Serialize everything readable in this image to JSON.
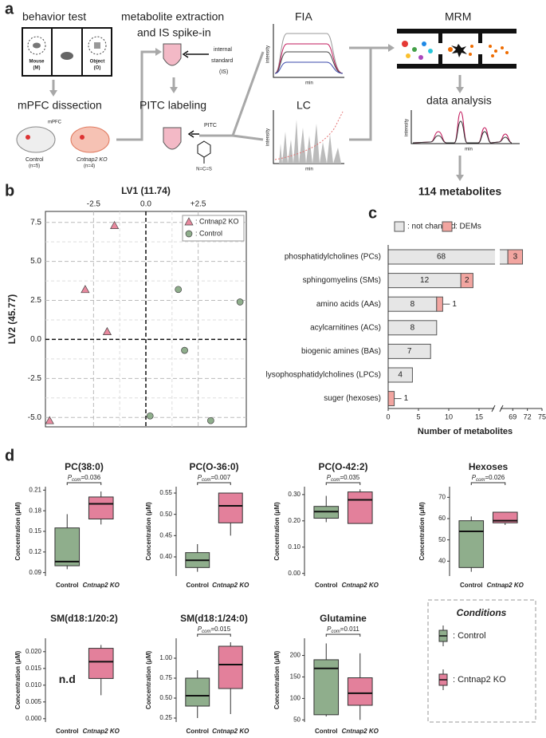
{
  "panel_labels": [
    "a",
    "b",
    "c",
    "d"
  ],
  "panel_a": {
    "behavior_test": "behavior test",
    "mouse": "Mouse",
    "mouse_code": "(M)",
    "object": "Object",
    "object_code": "(O)",
    "dissection": "mPFC dissection",
    "mpfc": "mPFC",
    "control": "Control",
    "control_n": "(n=5)",
    "ko": "Cntnap2 KO",
    "ko_n": "(n=4)",
    "extraction": [
      "metabolite extraction",
      "and IS spike-in"
    ],
    "is_label": [
      "internal",
      "standard",
      "(IS)"
    ],
    "labeling": "PITC labeling",
    "pitc": "PITC",
    "ncs": "N=C=S",
    "fia": "FIA",
    "lc": "LC",
    "mrm": "MRM",
    "analysis": "data analysis",
    "axis_y": "intensity",
    "axis_x": "min",
    "result": "114 metabolites"
  },
  "chart_data": [
    {
      "type": "scatter",
      "xlabel": "LV1 (11.74)",
      "ylabel": "LV2 (45.77)",
      "xlim": [
        -4.8,
        4.8
      ],
      "ylim": [
        -5.6,
        8.2
      ],
      "xticks": [
        -2.5,
        {
          "value": 0,
          "label": "0.0"
        },
        {
          "value": 2.5,
          "label": "+2.5"
        }
      ],
      "yticks": [
        {
          "value": -5,
          "label": "-5.0"
        },
        -2.5,
        {
          "value": 0,
          "label": "0.0"
        },
        2.5,
        {
          "value": 5,
          "label": "5.0"
        },
        7.5
      ],
      "grid": true,
      "legend": "upper right",
      "series": [
        {
          "name": ": Cntnap2 KO",
          "marker": "triangle",
          "color": "#e8899e",
          "x": [
            -1.5,
            -2.9,
            -1.85,
            -4.6
          ],
          "y": [
            7.3,
            3.2,
            0.5,
            -5.2
          ]
        },
        {
          "name": ": Control",
          "marker": "circle",
          "color": "#8fae8c",
          "x": [
            1.55,
            4.5,
            1.85,
            0.2,
            3.1
          ],
          "y": [
            3.2,
            2.4,
            -0.7,
            -4.9,
            -5.2
          ]
        }
      ]
    },
    {
      "type": "bar",
      "orientation": "horizontal",
      "stacked": true,
      "xlabel": "Number of metabolites",
      "categories": [
        "phosphatidylcholines (PCs)",
        "sphingomyelins (SMs)",
        "amino acids (AAs)",
        "acylcarnitines (ACs)",
        "biogenic amines (BAs)",
        "lysophosphatidylcholines (LPCs)",
        "suger (hexoses)"
      ],
      "series": [
        {
          "name": ": not changed",
          "color": "#e6e6e6",
          "values": [
            68,
            12,
            8,
            8,
            7,
            4,
            0
          ]
        },
        {
          "name": ": DEMs",
          "color": "#f2a5a0",
          "values": [
            3,
            2,
            1,
            0,
            0,
            0,
            1
          ]
        }
      ],
      "xlim": [
        0,
        75
      ],
      "xbreak": [
        17.5,
        66.5
      ],
      "xticks": [
        0,
        5,
        10,
        15,
        69,
        72,
        75
      ]
    },
    {
      "type": "box",
      "title": "PC(38:0)",
      "ylabel": "Concentration (μM)",
      "categories": [
        "Control",
        "Cntnap2 KO"
      ],
      "colors": [
        "#8fae8c",
        "#e3809b"
      ],
      "boxes": [
        {
          "min": 0.095,
          "q1": 0.1,
          "median": 0.106,
          "q3": 0.155,
          "max": 0.175
        },
        {
          "min": 0.16,
          "q1": 0.168,
          "median": 0.19,
          "q3": 0.2,
          "max": 0.208
        }
      ],
      "ylim": [
        0.085,
        0.215
      ],
      "yticks": [
        0.09,
        0.12,
        0.15,
        0.18,
        0.21
      ],
      "p_label": "P",
      "p_sub": "com",
      "p_text": "=0.036"
    },
    {
      "type": "box",
      "title": "PC(O-36:0)",
      "ylabel": "Concentration (μM)",
      "categories": [
        "Control",
        "Cntnap2 KO"
      ],
      "colors": [
        "#8fae8c",
        "#e3809b"
      ],
      "boxes": [
        {
          "min": 0.365,
          "q1": 0.375,
          "median": 0.392,
          "q3": 0.41,
          "max": 0.43
        },
        {
          "min": 0.45,
          "q1": 0.48,
          "median": 0.52,
          "q3": 0.55,
          "max": 0.55
        }
      ],
      "ylim": [
        0.355,
        0.565
      ],
      "yticks": [
        {
          "value": 0.4,
          "label": "0.40"
        },
        0.45,
        {
          "value": 0.5,
          "label": "0.50"
        },
        0.55
      ],
      "p_label": "P",
      "p_sub": "com",
      "p_text": "=0.007"
    },
    {
      "type": "box",
      "title": "PC(O-42:2)",
      "ylabel": "Concentration (μM)",
      "categories": [
        "Control",
        "Cntnap2 KO"
      ],
      "colors": [
        "#8fae8c",
        "#e3809b"
      ],
      "boxes": [
        {
          "min": 0.195,
          "q1": 0.21,
          "median": 0.235,
          "q3": 0.255,
          "max": 0.295
        },
        {
          "min": 0.19,
          "q1": 0.19,
          "median": 0.28,
          "q3": 0.31,
          "max": 0.32
        }
      ],
      "ylim": [
        -0.01,
        0.33
      ],
      "yticks": [
        {
          "value": 0,
          "label": "0.00"
        },
        {
          "value": 0.1,
          "label": "0.10"
        },
        {
          "value": 0.2,
          "label": "0.20"
        },
        {
          "value": 0.3,
          "label": "0.30"
        }
      ],
      "p_label": "P",
      "p_sub": "com",
      "p_text": "=0.035"
    },
    {
      "type": "box",
      "title": "Hexoses",
      "ylabel": "Concentration (μM)",
      "categories": [
        "Control",
        "Cntnap2 KO"
      ],
      "colors": [
        "#8fae8c",
        "#e3809b"
      ],
      "boxes": [
        {
          "min": 35,
          "q1": 37,
          "median": 54,
          "q3": 59,
          "max": 61
        },
        {
          "min": 57,
          "q1": 58,
          "median": 59,
          "q3": 63,
          "max": 63
        }
      ],
      "ylim": [
        33,
        75
      ],
      "yticks": [
        40,
        50,
        60,
        70
      ],
      "p_label": "P",
      "p_sub": "com",
      "p_text": "=0.026"
    },
    {
      "type": "box",
      "title": "SM(d18:1/20:2)",
      "ylabel": "Concentration (μM)",
      "categories": [
        "Control",
        "Cntnap2 KO"
      ],
      "colors": [
        "#8fae8c",
        "#e3809b"
      ],
      "boxes": [
        null,
        {
          "min": 0.007,
          "q1": 0.012,
          "median": 0.017,
          "q3": 0.021,
          "max": 0.022
        }
      ],
      "nd_label": "n.d",
      "ylim": [
        -0.001,
        0.024
      ],
      "yticks": [
        {
          "value": 0,
          "label": "0.000"
        },
        0.005,
        {
          "value": 0.01,
          "label": "0.010"
        },
        0.015,
        {
          "value": 0.02,
          "label": "0.020"
        }
      ]
    },
    {
      "type": "box",
      "title": "SM(d18:1/24:0)",
      "ylabel": "Concentration (μM)",
      "categories": [
        "Control",
        "Cntnap2 KO"
      ],
      "colors": [
        "#8fae8c",
        "#e3809b"
      ],
      "boxes": [
        {
          "min": 0.25,
          "q1": 0.4,
          "median": 0.53,
          "q3": 0.75,
          "max": 0.85
        },
        {
          "min": 0.3,
          "q1": 0.62,
          "median": 0.92,
          "q3": 1.15,
          "max": 1.2
        }
      ],
      "ylim": [
        0.2,
        1.25
      ],
      "yticks": [
        0.25,
        {
          "value": 0.5,
          "label": "0.50"
        },
        0.75,
        {
          "value": 1,
          "label": "1.00"
        }
      ],
      "p_label": "P",
      "p_sub": "com",
      "p_text": "=0.015"
    },
    {
      "type": "box",
      "title": "Glutamine",
      "ylabel": "Concentration (μM)",
      "categories": [
        "Control",
        "Cntnap2 KO"
      ],
      "colors": [
        "#8fae8c",
        "#e3809b"
      ],
      "boxes": [
        {
          "min": 58,
          "q1": 62,
          "median": 170,
          "q3": 190,
          "max": 228
        },
        {
          "min": 50,
          "q1": 84,
          "median": 112,
          "q3": 148,
          "max": 205
        }
      ],
      "ylim": [
        45,
        240
      ],
      "yticks": [
        50,
        100,
        150,
        200
      ],
      "p_label": "P",
      "p_sub": "com",
      "p_text": "=0.011"
    }
  ],
  "box_legend": {
    "title": "Conditions",
    "entries": [
      ": Control",
      ": Cntnap2 KO"
    ],
    "colors": [
      "#8fae8c",
      "#e3809b"
    ]
  }
}
